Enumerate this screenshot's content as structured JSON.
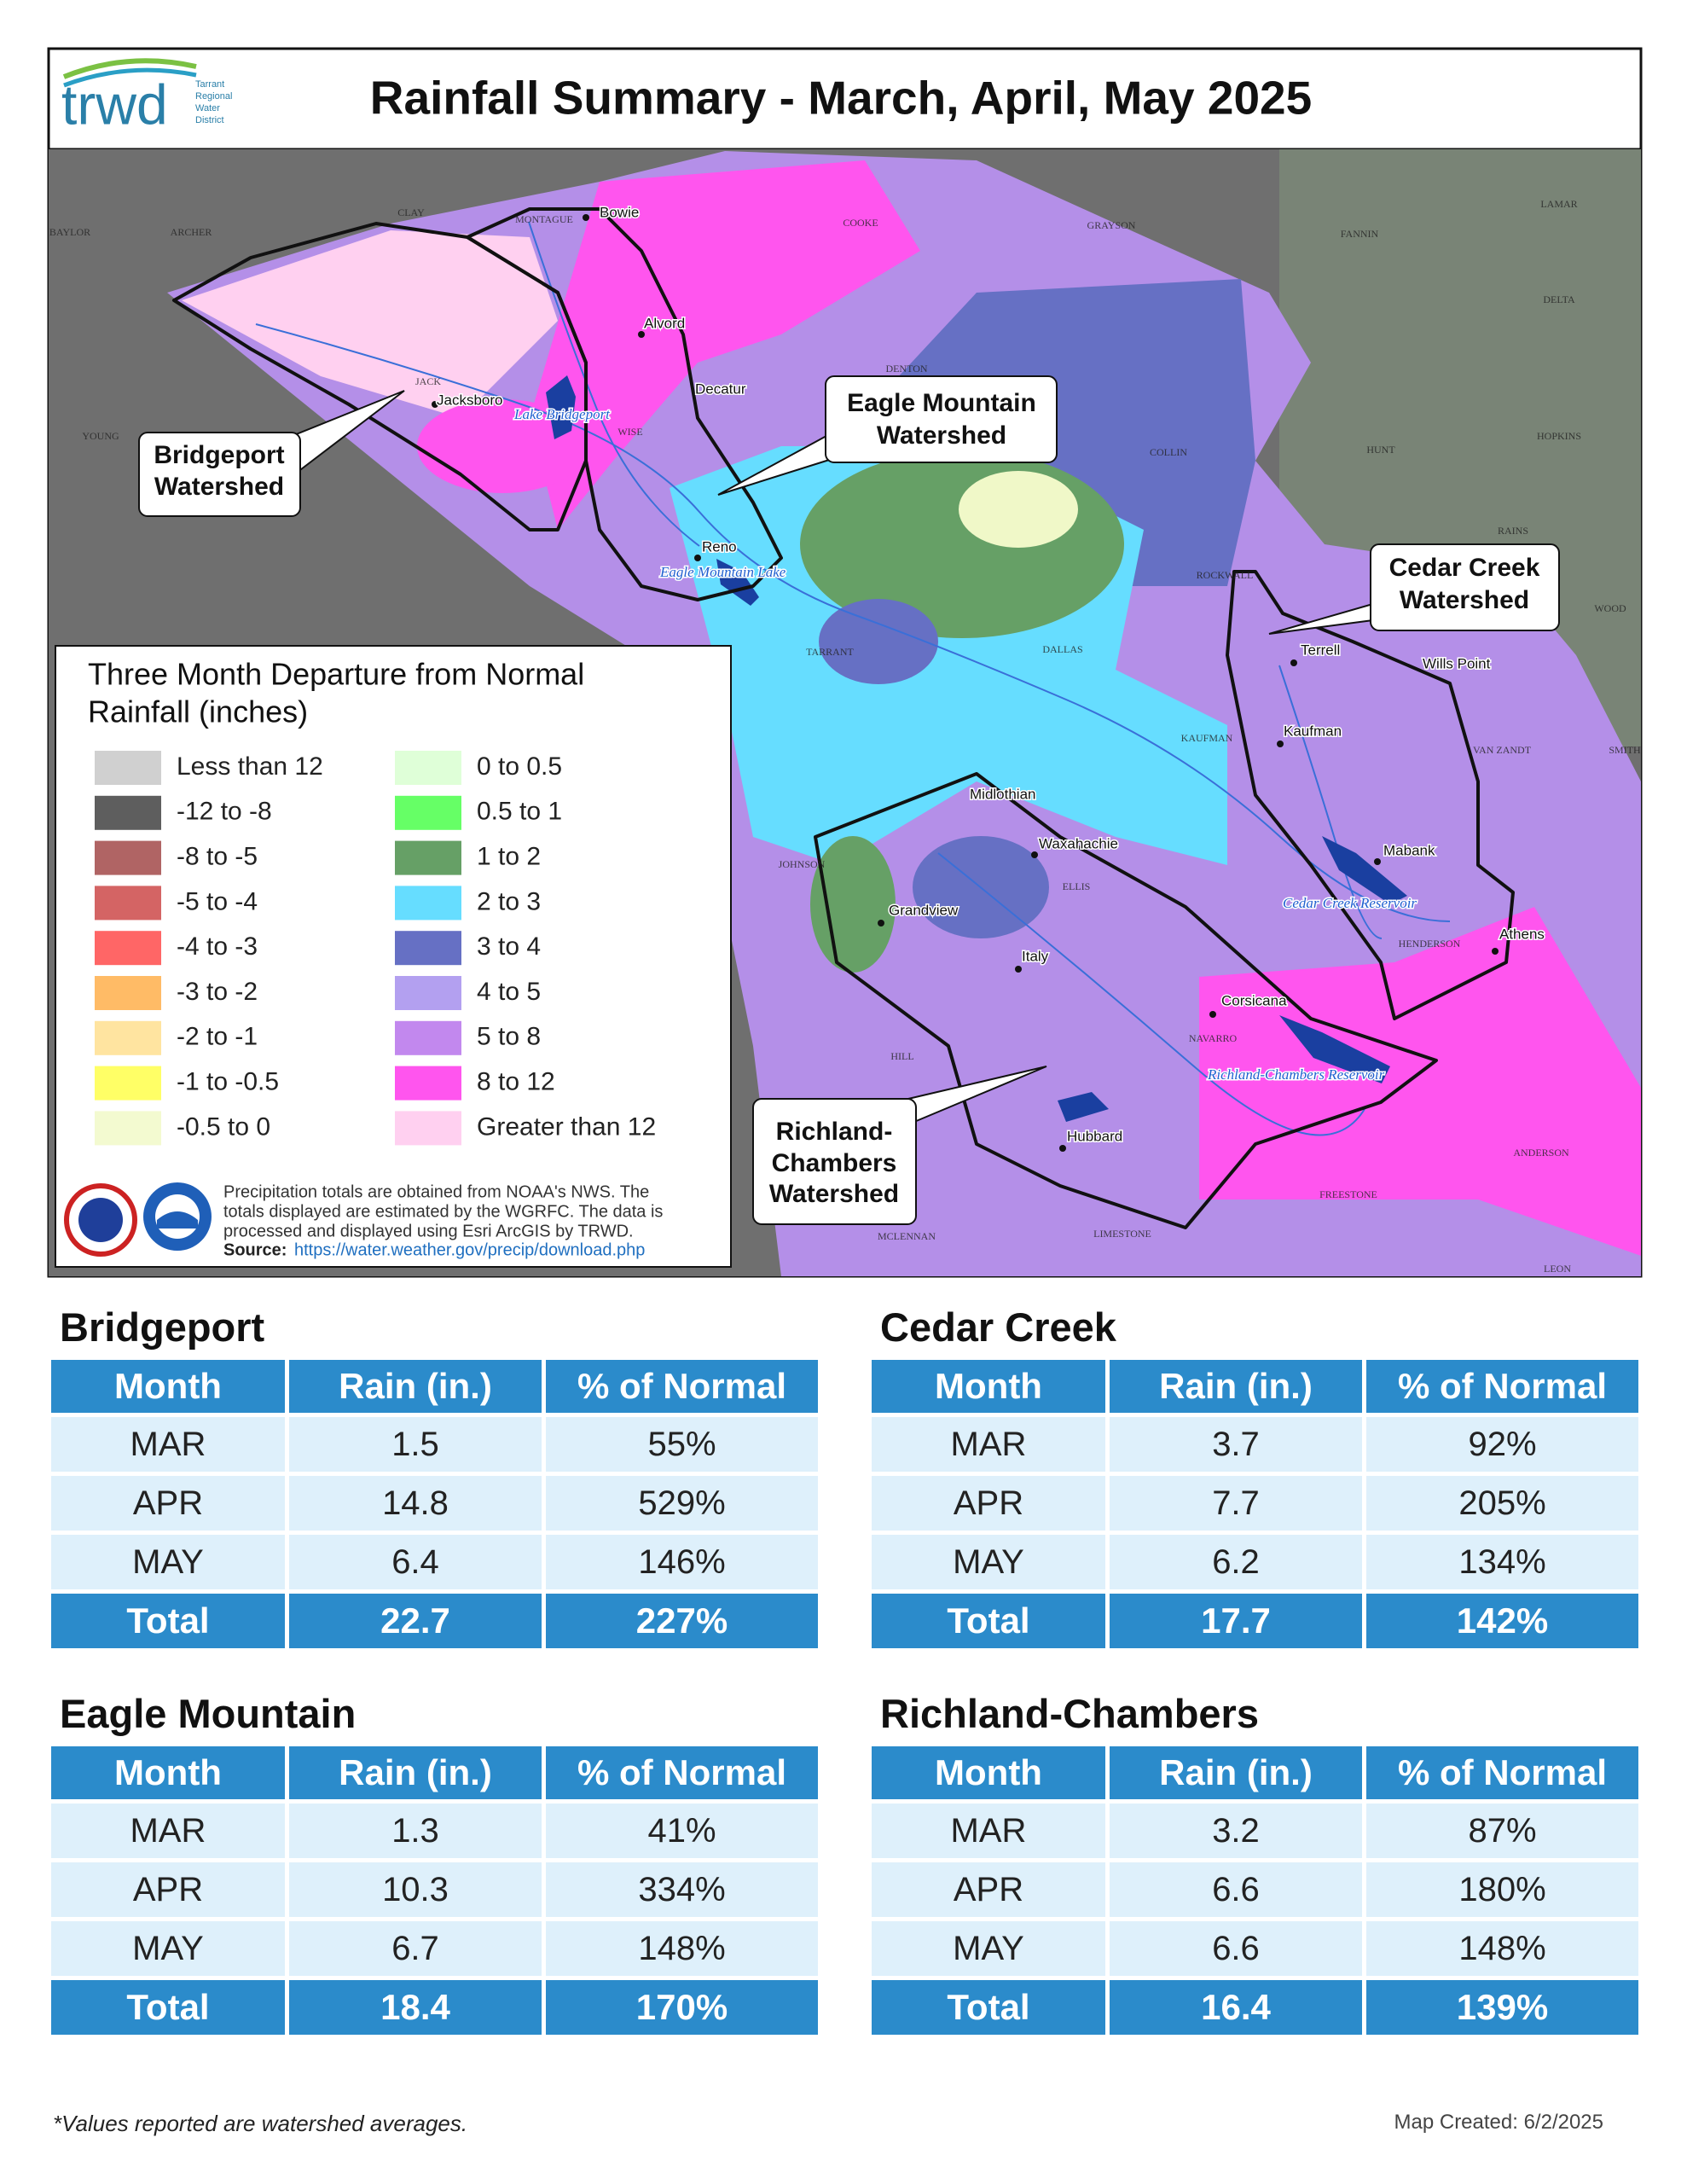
{
  "header": {
    "logo": "trwd",
    "logo_sub": [
      "Tarrant",
      "Regional",
      "Water",
      "District"
    ],
    "title": "Rainfall Summary - March, April, May 2025"
  },
  "map": {
    "callouts": [
      {
        "lines": [
          "Bridgeport",
          "Watershed"
        ]
      },
      {
        "lines": [
          "Eagle Mountain",
          "Watershed"
        ]
      },
      {
        "lines": [
          "Cedar Creek",
          "Watershed"
        ]
      },
      {
        "lines": [
          "Richland-",
          "Chambers",
          "Watershed"
        ]
      }
    ],
    "places": [
      "Bowie",
      "Alvord",
      "Decatur",
      "Jacksboro",
      "Reno",
      "Terrell",
      "Wills Point",
      "Kaufman",
      "Mabank",
      "Athens",
      "Midlothian",
      "Waxahachie",
      "Grandview",
      "Italy",
      "Corsicana",
      "Hubbard"
    ],
    "water": [
      "Lake Bridgeport",
      "Eagle Mountain Lake",
      "Cedar Creek Reservoir",
      "Richland-Chambers Reservoir"
    ],
    "counties": [
      "BAYLOR",
      "ARCHER",
      "CLAY",
      "MONTAGUE",
      "COOKE",
      "GRAYSON",
      "FANNIN",
      "LAMAR",
      "DELTA",
      "HOPKINS",
      "HUNT",
      "RAINS",
      "WOOD",
      "VAN ZANDT",
      "SMITH",
      "HENDERSON",
      "ANDERSON",
      "FREESTONE",
      "LEON",
      "LIMESTONE",
      "MCLENNAN",
      "HILL",
      "JOHNSON",
      "ELLIS",
      "NAVARRO",
      "KAUFMAN",
      "ROCKWALL",
      "DALLAS",
      "TARRANT",
      "COLLIN",
      "DENTON",
      "WISE",
      "JACK",
      "YOUNG"
    ]
  },
  "legend": {
    "title": [
      "Three Month Departure from Normal",
      "Rainfall (inches)"
    ],
    "items": [
      {
        "label": "Less than 12",
        "color": "#d0d0d0"
      },
      {
        "label": "-12 to -8",
        "color": "#5e5e5e"
      },
      {
        "label": "-8 to -5",
        "color": "#b06464"
      },
      {
        "label": "-5 to -4",
        "color": "#d46464"
      },
      {
        "label": "-4 to -3",
        "color": "#ff6666"
      },
      {
        "label": "-3 to -2",
        "color": "#ffbb66"
      },
      {
        "label": "-2 to -1",
        "color": "#ffe4a0"
      },
      {
        "label": "-1 to -0.5",
        "color": "#ffff66"
      },
      {
        "label": "-0.5 to 0",
        "color": "#f3fad0"
      },
      {
        "label": "0 to 0.5",
        "color": "#dfffd8"
      },
      {
        "label": "0.5 to 1",
        "color": "#66ff66"
      },
      {
        "label": "1 to 2",
        "color": "#66a066"
      },
      {
        "label": "2 to 3",
        "color": "#66ddff"
      },
      {
        "label": "3 to 4",
        "color": "#6670c4"
      },
      {
        "label": "4 to 5",
        "color": "#b3a0f0"
      },
      {
        "label": "5 to 8",
        "color": "#c288ee"
      },
      {
        "label": "8 to 12",
        "color": "#ff55ee"
      },
      {
        "label": "Greater than 12",
        "color": "#ffd0f0"
      }
    ],
    "note": [
      "Precipitation totals are obtained from NOAA's NWS. The",
      "totals displayed are estimated by the WGRFC. The data is",
      "processed and displayed using Esri ArcGIS by TRWD."
    ],
    "source_label": "Source:",
    "source_url": "https://water.weather.gov/precip/download.php"
  },
  "tables": [
    {
      "title": "Bridgeport",
      "columns": [
        "Month",
        "Rain (in.)",
        "% of Normal"
      ],
      "rows": [
        [
          "MAR",
          "1.5",
          "55%"
        ],
        [
          "APR",
          "14.8",
          "529%"
        ],
        [
          "MAY",
          "6.4",
          "146%"
        ]
      ],
      "total": [
        "Total",
        "22.7",
        "227%"
      ]
    },
    {
      "title": "Cedar Creek",
      "columns": [
        "Month",
        "Rain (in.)",
        "% of Normal"
      ],
      "rows": [
        [
          "MAR",
          "3.7",
          "92%"
        ],
        [
          "APR",
          "7.7",
          "205%"
        ],
        [
          "MAY",
          "6.2",
          "134%"
        ]
      ],
      "total": [
        "Total",
        "17.7",
        "142%"
      ]
    },
    {
      "title": "Eagle Mountain",
      "columns": [
        "Month",
        "Rain (in.)",
        "% of Normal"
      ],
      "rows": [
        [
          "MAR",
          "1.3",
          "41%"
        ],
        [
          "APR",
          "10.3",
          "334%"
        ],
        [
          "MAY",
          "6.7",
          "148%"
        ]
      ],
      "total": [
        "Total",
        "18.4",
        "170%"
      ]
    },
    {
      "title": "Richland-Chambers",
      "columns": [
        "Month",
        "Rain (in.)",
        "% of Normal"
      ],
      "rows": [
        [
          "MAR",
          "3.2",
          "87%"
        ],
        [
          "APR",
          "6.6",
          "180%"
        ],
        [
          "MAY",
          "6.6",
          "148%"
        ]
      ],
      "total": [
        "Total",
        "16.4",
        "139%"
      ]
    }
  ],
  "footer": {
    "note": "*Values reported are watershed averages.",
    "created": "Map Created: 6/2/2025"
  }
}
